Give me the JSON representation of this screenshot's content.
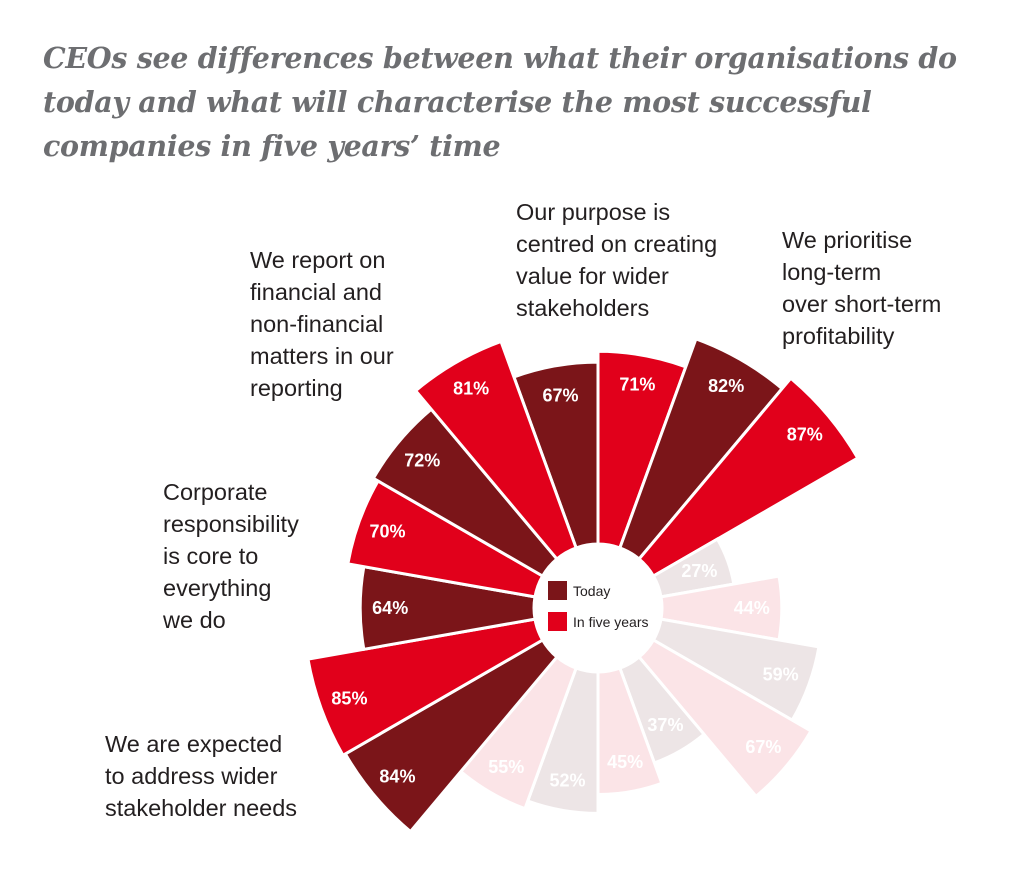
{
  "chart_data": {
    "type": "polar-bar",
    "title": "CEOs see differences between what their organisations do today and what will characterise the most successful companies in five years’ time",
    "legend": {
      "placement": "center",
      "entries": [
        "Today",
        "In five years"
      ]
    },
    "series": [
      {
        "name": "Today",
        "color": "#7b1519",
        "faded_color": "#ede5e6"
      },
      {
        "name": "In five years",
        "color": "#e1001b",
        "faded_color": "#fbe4e7"
      }
    ],
    "categories": [
      {
        "label": "Our purpose is\ncentred on creating\nvalue for wider\nstakeholders",
        "highlighted": true,
        "values": [
          67,
          71
        ]
      },
      {
        "label": "We prioritise\nlong-term\nover short-term\nprofitability",
        "highlighted": true,
        "values": [
          82,
          87
        ]
      },
      {
        "label": "",
        "highlighted": false,
        "values": [
          27,
          44
        ]
      },
      {
        "label": "",
        "highlighted": false,
        "values": [
          59,
          67
        ]
      },
      {
        "label": "",
        "highlighted": false,
        "values": [
          37,
          45
        ]
      },
      {
        "label": "",
        "highlighted": false,
        "values": [
          52,
          55
        ]
      },
      {
        "label": "We are expected\nto address wider\nstakeholder needs",
        "highlighted": true,
        "values": [
          84,
          85
        ]
      },
      {
        "label": "Corporate\nresponsibility\nis core to\neverything\nwe do",
        "highlighted": true,
        "values": [
          64,
          70
        ]
      },
      {
        "label": "We report on\nfinancial and\nnon-financial\nmatters in our\nreporting",
        "highlighted": true,
        "values": [
          72,
          81
        ]
      }
    ],
    "value_suffix": "%"
  }
}
